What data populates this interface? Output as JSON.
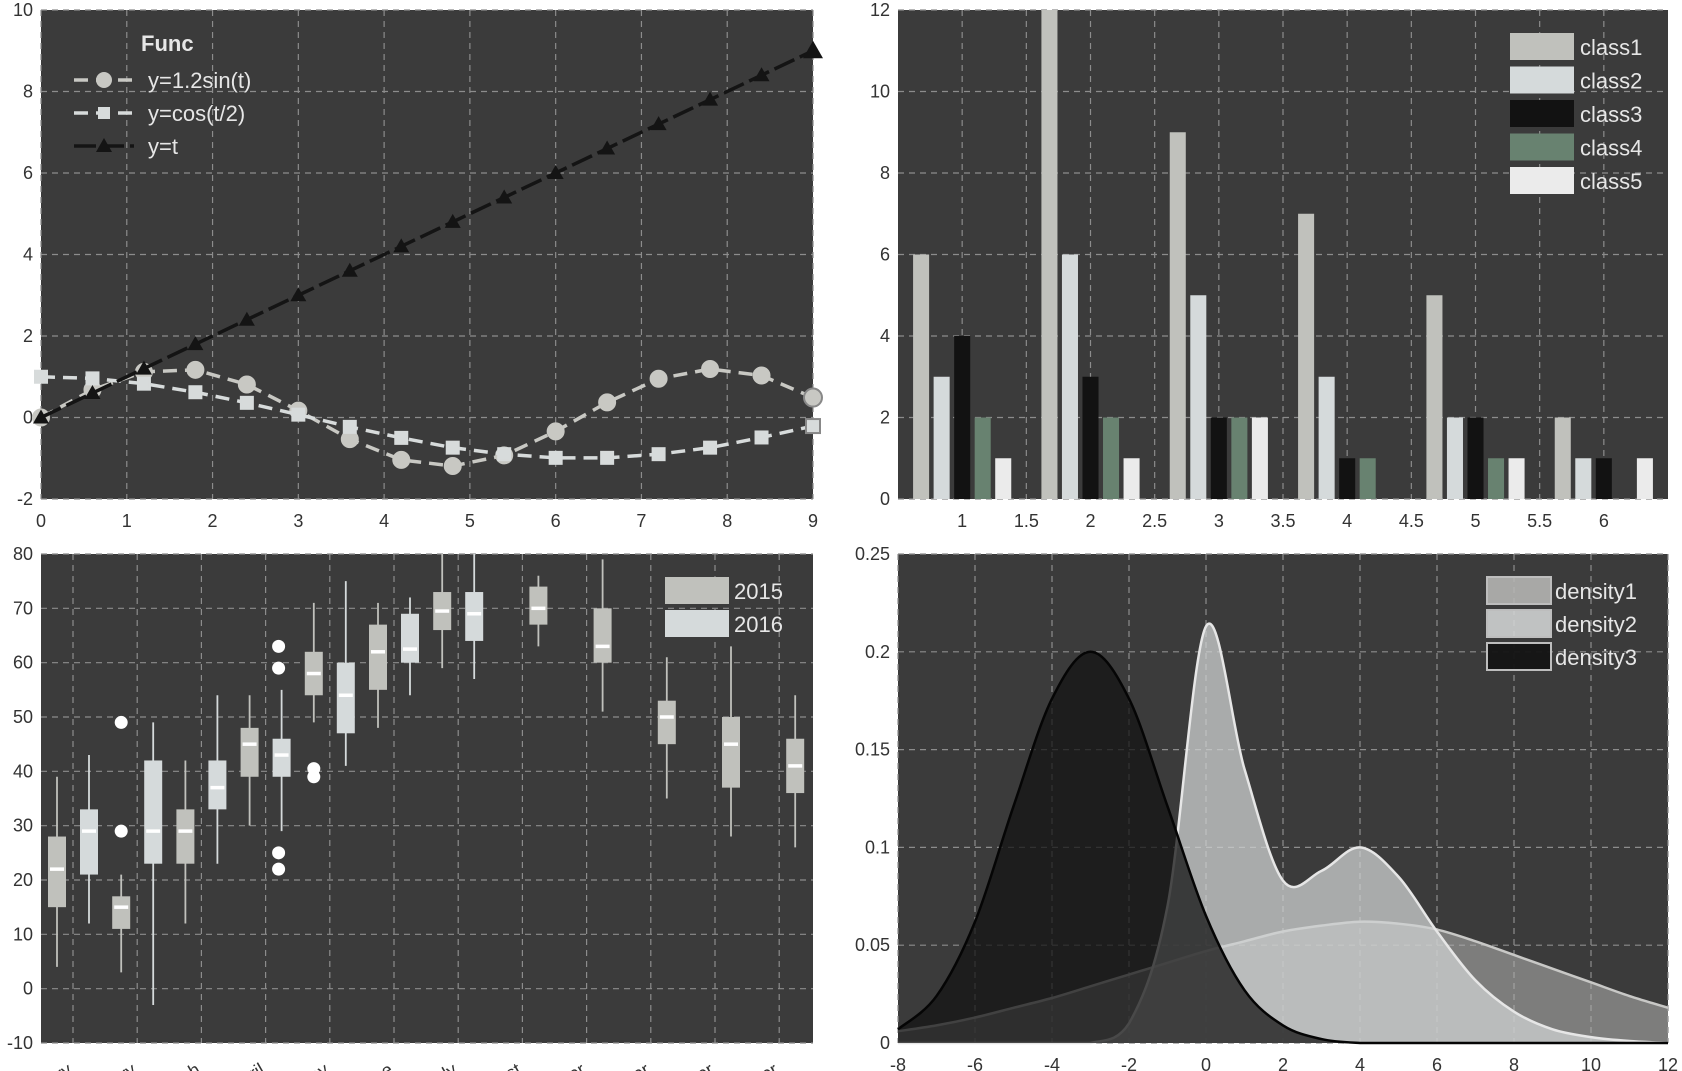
{
  "chart_data": [
    {
      "type": "line",
      "title": "",
      "xlabel": "",
      "ylabel": "",
      "xlim": [
        0,
        9
      ],
      "ylim": [
        -2,
        10
      ],
      "xticks": [
        "0",
        "1",
        "2",
        "3",
        "4",
        "5",
        "6",
        "7",
        "8",
        "9"
      ],
      "yticks": [
        "-2",
        "0",
        "2",
        "4",
        "6",
        "8",
        "10"
      ],
      "grid": true,
      "legend": {
        "title": "Func",
        "position": "top-left"
      },
      "x": [
        0,
        0.6,
        1.2,
        1.8,
        2.4,
        3.0,
        3.6,
        4.2,
        4.8,
        5.4,
        6.0,
        6.6,
        7.2,
        7.8,
        8.4,
        9.0
      ],
      "series": [
        {
          "name": "y=1.2sin(t)",
          "marker": "circle",
          "color": "#c8c8c3",
          "values": [
            0,
            0.68,
            1.12,
            1.17,
            0.81,
            0.17,
            -0.53,
            -1.04,
            -1.19,
            -0.93,
            -0.34,
            0.37,
            0.95,
            1.19,
            1.03,
            0.49
          ]
        },
        {
          "name": "y=cos(t/2)",
          "marker": "square",
          "color": "#d7dbdb",
          "values": [
            1,
            0.96,
            0.83,
            0.62,
            0.36,
            0.07,
            -0.23,
            -0.5,
            -0.74,
            -0.9,
            -0.99,
            -0.99,
            -0.9,
            -0.74,
            -0.49,
            -0.21
          ]
        },
        {
          "name": "y=t",
          "marker": "triangle",
          "color": "#141414",
          "values": [
            0,
            0.6,
            1.2,
            1.8,
            2.4,
            3.0,
            3.6,
            4.2,
            4.8,
            5.4,
            6.0,
            6.6,
            7.2,
            7.8,
            8.4,
            9.0
          ]
        }
      ]
    },
    {
      "type": "bar",
      "title": "",
      "xlabel": "",
      "ylabel": "",
      "categories": [
        1,
        2,
        3,
        4,
        5,
        6
      ],
      "xlim": [
        0.5,
        6.5
      ],
      "ylim": [
        0,
        12
      ],
      "xticks": [
        "1",
        "1.5",
        "2",
        "2.5",
        "3",
        "3.5",
        "4",
        "4.5",
        "5",
        "5.5",
        "6"
      ],
      "yticks": [
        "0",
        "2",
        "4",
        "6",
        "8",
        "10",
        "12"
      ],
      "grid": true,
      "legend": {
        "position": "top-right"
      },
      "series": [
        {
          "name": "class1",
          "color": "#c0c1bc",
          "values": [
            6,
            12,
            9,
            7,
            5,
            2
          ]
        },
        {
          "name": "class2",
          "color": "#d5dadb",
          "values": [
            3,
            6,
            5,
            3,
            2,
            1
          ]
        },
        {
          "name": "class3",
          "color": "#121212",
          "values": [
            4,
            3,
            2,
            1,
            2,
            1
          ]
        },
        {
          "name": "class4",
          "color": "#688270",
          "values": [
            2,
            2,
            2,
            1,
            1,
            0
          ]
        },
        {
          "name": "class5",
          "color": "#ebebeb",
          "values": [
            1,
            1,
            2,
            0,
            1,
            1
          ]
        }
      ]
    },
    {
      "type": "box",
      "title": "",
      "xlabel": "",
      "ylabel": "",
      "ylim": [
        -10,
        80
      ],
      "yticks": [
        "-10",
        "0",
        "10",
        "20",
        "30",
        "40",
        "50",
        "60",
        "70",
        "80"
      ],
      "grid": true,
      "legend": {
        "position": "top-right"
      },
      "categories": [
        "ry",
        "ry",
        "ch",
        "ril",
        "ay",
        "ne",
        "ly",
        "st",
        "er",
        "er",
        "er",
        "er"
      ],
      "series": [
        {
          "name": "2015",
          "color": "#c0c1bc",
          "boxes": [
            {
              "x": 1,
              "whislo": 4,
              "q1": 15,
              "med": 22,
              "q3": 28,
              "whishi": 39,
              "fliers": []
            },
            {
              "x": 2,
              "whislo": 3,
              "q1": 11,
              "med": 15,
              "q3": 17,
              "whishi": 21,
              "fliers": [
                29,
                49
              ]
            },
            {
              "x": 3,
              "whislo": 12,
              "q1": 23,
              "med": 29,
              "q3": 33,
              "whishi": 42,
              "fliers": []
            },
            {
              "x": 4,
              "whislo": 30,
              "q1": 39,
              "med": 45,
              "q3": 48,
              "whishi": 54,
              "fliers": []
            },
            {
              "x": 5,
              "whislo": 49,
              "q1": 54,
              "med": 58,
              "q3": 62,
              "whishi": 71,
              "fliers": [
                39,
                40.5
              ]
            },
            {
              "x": 6,
              "whislo": 48,
              "q1": 55,
              "med": 62,
              "q3": 67,
              "whishi": 71,
              "fliers": []
            },
            {
              "x": 7,
              "whislo": 59,
              "q1": 66,
              "med": 69.5,
              "q3": 73,
              "whishi": 80,
              "fliers": []
            },
            {
              "x": 8,
              "whislo": 63,
              "q1": 67,
              "med": 70,
              "q3": 74,
              "whishi": 76,
              "fliers": []
            },
            {
              "x": 9,
              "whislo": 51,
              "q1": 60,
              "med": 63,
              "q3": 70,
              "whishi": 79,
              "fliers": []
            },
            {
              "x": 10,
              "whislo": 35,
              "q1": 45,
              "med": 50,
              "q3": 53,
              "whishi": 61,
              "fliers": []
            },
            {
              "x": 11,
              "whislo": 28,
              "q1": 37,
              "med": 45,
              "q3": 50,
              "whishi": 63,
              "fliers": []
            },
            {
              "x": 12,
              "whislo": 26,
              "q1": 36,
              "med": 41,
              "q3": 46,
              "whishi": 54,
              "fliers": []
            }
          ]
        },
        {
          "name": "2016",
          "color": "#d5dadb",
          "boxes": [
            {
              "x": 1,
              "whislo": 12,
              "q1": 21,
              "med": 29,
              "q3": 33,
              "whishi": 43,
              "fliers": []
            },
            {
              "x": 2,
              "whislo": -3,
              "q1": 23,
              "med": 29,
              "q3": 42,
              "whishi": 49,
              "fliers": []
            },
            {
              "x": 3,
              "whislo": 23,
              "q1": 33,
              "med": 37,
              "q3": 42,
              "whishi": 54,
              "fliers": []
            },
            {
              "x": 4,
              "whislo": 29,
              "q1": 39,
              "med": 43,
              "q3": 46,
              "whishi": 55,
              "fliers": [
                59,
                63,
                25,
                22
              ]
            },
            {
              "x": 5,
              "whislo": 41,
              "q1": 47,
              "med": 54,
              "q3": 60,
              "whishi": 75,
              "fliers": []
            },
            {
              "x": 6,
              "whislo": 54,
              "q1": 60,
              "med": 62.5,
              "q3": 69,
              "whishi": 72,
              "fliers": []
            },
            {
              "x": 7,
              "whislo": 57,
              "q1": 64,
              "med": 69,
              "q3": 73,
              "whishi": 80,
              "fliers": []
            }
          ]
        }
      ]
    },
    {
      "type": "area",
      "title": "",
      "xlabel": "",
      "ylabel": "",
      "xlim": [
        -8,
        12
      ],
      "ylim": [
        0,
        0.25
      ],
      "xticks": [
        "-8",
        "-6",
        "-4",
        "-2",
        "0",
        "2",
        "4",
        "6",
        "8",
        "10",
        "12"
      ],
      "yticks": [
        "0",
        "0.05",
        "0.1",
        "0.15",
        "0.2",
        "0.25"
      ],
      "grid": true,
      "legend": {
        "position": "top-right"
      },
      "x": [
        -8,
        -7,
        -6,
        -5,
        -4,
        -3,
        -2,
        -1,
        0,
        1,
        2,
        3,
        4,
        5,
        6,
        7,
        8,
        9,
        10,
        11,
        12
      ],
      "series": [
        {
          "name": "density1",
          "color": "#9a9a98",
          "values": [
            0.006,
            0.009,
            0.013,
            0.018,
            0.023,
            0.029,
            0.035,
            0.041,
            0.047,
            0.052,
            0.057,
            0.06,
            0.062,
            0.061,
            0.058,
            0.052,
            0.045,
            0.038,
            0.031,
            0.024,
            0.018
          ]
        },
        {
          "name": "density2",
          "color": "#b2b4b4",
          "values": [
            0,
            0,
            0,
            0,
            0,
            0,
            0.01,
            0.07,
            0.213,
            0.14,
            0.083,
            0.088,
            0.1,
            0.085,
            0.057,
            0.032,
            0.016,
            0.007,
            0.003,
            0.001,
            0
          ]
        },
        {
          "name": "density3",
          "color": "#222222",
          "values": [
            0.007,
            0.024,
            0.062,
            0.121,
            0.176,
            0.2,
            0.176,
            0.121,
            0.065,
            0.027,
            0.009,
            0.002,
            0,
            0,
            0,
            0,
            0,
            0,
            0,
            0,
            0
          ]
        }
      ]
    }
  ]
}
